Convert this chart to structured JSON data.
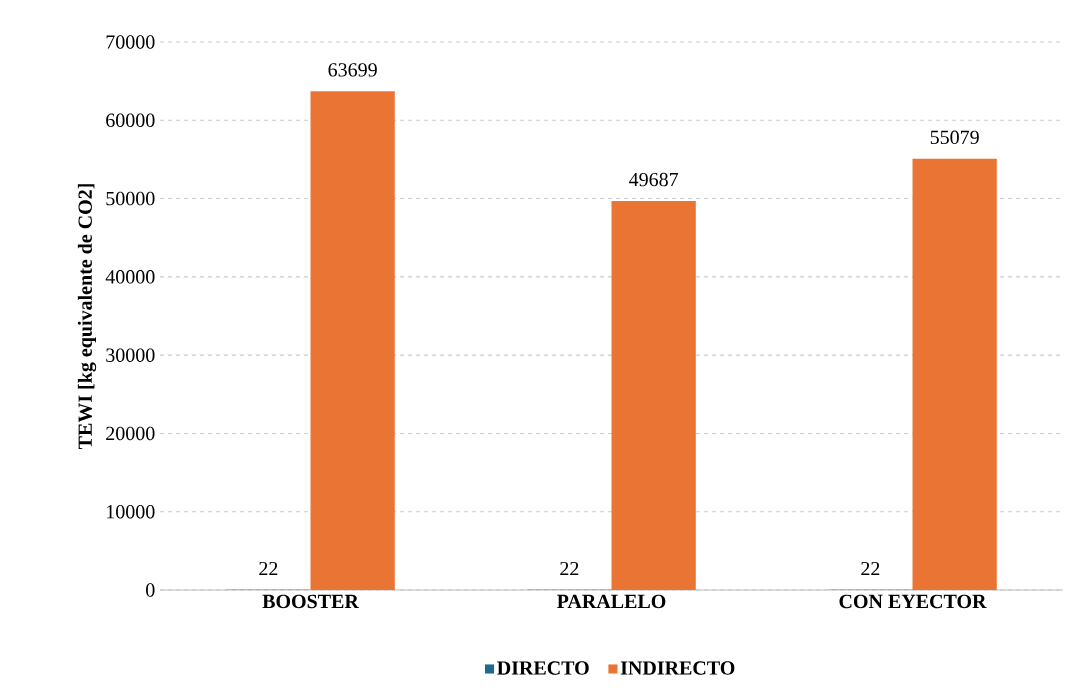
{
  "chart_data": {
    "type": "bar",
    "ylabel": "TEWI [kg equivalente de CO2]",
    "categories": [
      "BOOSTER",
      "PARALELO",
      "CON EYECTOR"
    ],
    "series": [
      {
        "name": "DIRECTO",
        "color": "#1f6b8c",
        "values": [
          22,
          22,
          22
        ]
      },
      {
        "name": "INDIRECTO",
        "color": "#ea7434",
        "values": [
          63699,
          49687,
          55079
        ]
      }
    ],
    "ylim": [
      0,
      70000
    ],
    "yticks": [
      0,
      10000,
      20000,
      30000,
      40000,
      50000,
      60000,
      70000
    ],
    "grid": "y",
    "legend": "bottom",
    "data_labels": true
  }
}
